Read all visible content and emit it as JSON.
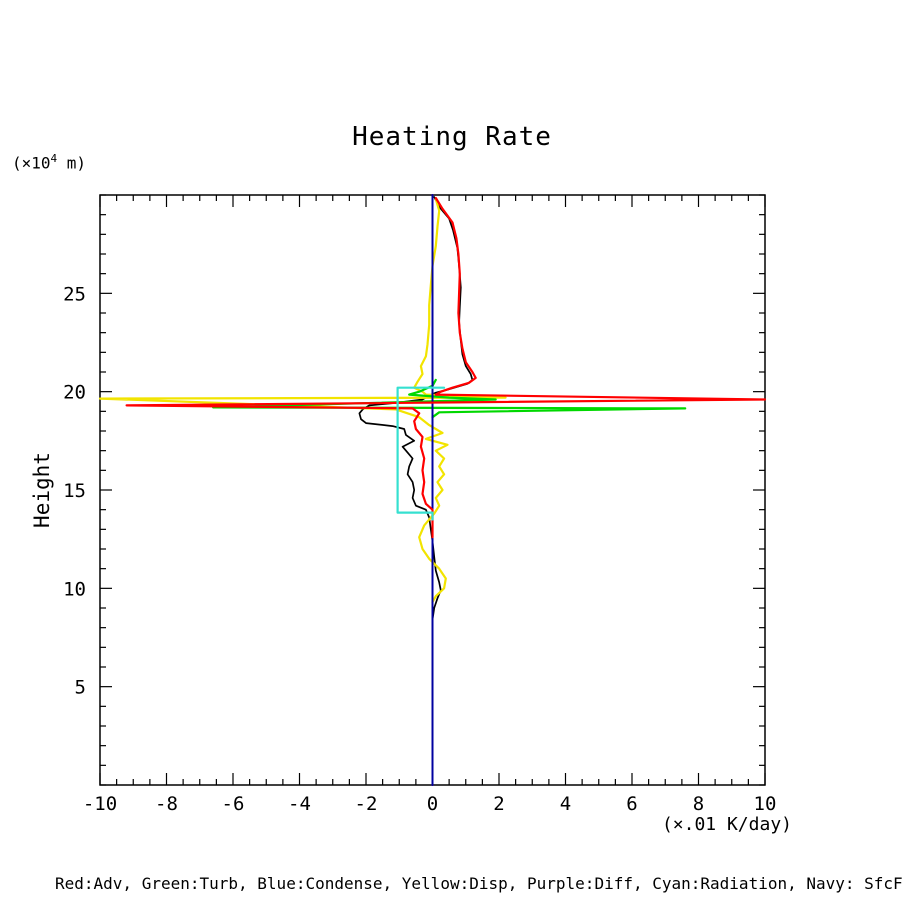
{
  "page": {
    "title": "Heating Rate",
    "y_axis_unit": {
      "prefix": "(×10",
      "sup": "4",
      "suffix": " m)"
    },
    "y_axis_label": "Height",
    "x_axis_unit": "(×.01 K/day)",
    "legend": "Red:Adv, Green:Turb, Blue:Condense, Yellow:Disp, Purple:Diff, Cyan:Radiation, Navy: SfcFluc"
  },
  "chart_data": {
    "type": "line",
    "title": "Heating Rate",
    "xlabel": "(×.01 K/day)",
    "ylabel": "Height (×10⁴ m)",
    "xlim": [
      -10,
      10
    ],
    "ylim": [
      0,
      30
    ],
    "x_ticks": [
      -10,
      -8,
      -6,
      -4,
      -2,
      0,
      2,
      4,
      6,
      8,
      10
    ],
    "y_ticks": [
      5,
      10,
      15,
      20,
      25
    ],
    "x_minor_step": 0.5,
    "y_minor_step": 1,
    "grid": false,
    "legend_position": "bottom",
    "series": [
      {
        "name": "diff-purple",
        "label": "Purple:Diff",
        "color": "#a000a0",
        "width": 2,
        "points": [
          [
            0,
            30
          ],
          [
            0,
            0
          ]
        ]
      },
      {
        "name": "total-black",
        "label": "Black",
        "color": "#000000",
        "width": 1.7,
        "points": [
          [
            0.05,
            29.9
          ],
          [
            0.2,
            29.4
          ],
          [
            0.5,
            28.8
          ],
          [
            0.62,
            28.2
          ],
          [
            0.75,
            27.3
          ],
          [
            0.8,
            26.4
          ],
          [
            0.85,
            25.3
          ],
          [
            0.82,
            24.3
          ],
          [
            0.8,
            23.5
          ],
          [
            0.85,
            22.6
          ],
          [
            0.9,
            21.9
          ],
          [
            1.0,
            21.3
          ],
          [
            1.15,
            20.9
          ],
          [
            1.2,
            20.6
          ],
          [
            1.05,
            20.4
          ],
          [
            0.45,
            20.1
          ],
          [
            0.1,
            19.95
          ],
          [
            -0.1,
            19.8
          ],
          [
            -0.3,
            19.6
          ],
          [
            -1.0,
            19.45
          ],
          [
            -1.9,
            19.3
          ],
          [
            -2.1,
            19.1
          ],
          [
            -2.2,
            18.9
          ],
          [
            -2.15,
            18.6
          ],
          [
            -2.0,
            18.4
          ],
          [
            -1.2,
            18.25
          ],
          [
            -0.85,
            18.1
          ],
          [
            -0.8,
            17.8
          ],
          [
            -0.55,
            17.5
          ],
          [
            -0.9,
            17.2
          ],
          [
            -0.75,
            16.9
          ],
          [
            -0.6,
            16.6
          ],
          [
            -0.7,
            16.2
          ],
          [
            -0.75,
            15.8
          ],
          [
            -0.6,
            15.4
          ],
          [
            -0.55,
            15.0
          ],
          [
            -0.6,
            14.6
          ],
          [
            -0.5,
            14.2
          ],
          [
            -0.2,
            14.0
          ],
          [
            -0.1,
            13.6
          ],
          [
            -0.05,
            13.0
          ],
          [
            0.0,
            12.4
          ],
          [
            0.05,
            11.6
          ],
          [
            0.1,
            10.9
          ],
          [
            0.2,
            10.3
          ],
          [
            0.25,
            9.9
          ],
          [
            0.15,
            9.5
          ],
          [
            0.05,
            9.0
          ],
          [
            0.0,
            8.4
          ],
          [
            0.0,
            8.0
          ]
        ]
      },
      {
        "name": "disp-yellow",
        "label": "Yellow:Disp",
        "color": "#f2e400",
        "width": 2.2,
        "points": [
          [
            0.1,
            29.8
          ],
          [
            0.2,
            29.2
          ],
          [
            0.15,
            28.4
          ],
          [
            0.1,
            27.4
          ],
          [
            0.0,
            26.4
          ],
          [
            -0.05,
            25.4
          ],
          [
            -0.1,
            24.4
          ],
          [
            -0.1,
            23.4
          ],
          [
            -0.15,
            22.4
          ],
          [
            -0.2,
            21.8
          ],
          [
            -0.35,
            21.3
          ],
          [
            -0.3,
            20.9
          ],
          [
            -0.45,
            20.5
          ],
          [
            -0.55,
            20.2
          ],
          [
            -0.3,
            20.0
          ],
          [
            -0.2,
            19.85
          ],
          [
            2.2,
            19.7
          ],
          [
            -10,
            19.65
          ],
          [
            -1.1,
            19.1
          ],
          [
            -0.4,
            18.7
          ],
          [
            -0.1,
            18.3
          ],
          [
            0.3,
            17.9
          ],
          [
            -0.2,
            17.6
          ],
          [
            0.45,
            17.3
          ],
          [
            0.1,
            17.0
          ],
          [
            0.35,
            16.6
          ],
          [
            0.2,
            16.2
          ],
          [
            0.35,
            15.8
          ],
          [
            0.15,
            15.4
          ],
          [
            0.3,
            15.0
          ],
          [
            0.1,
            14.6
          ],
          [
            0.2,
            14.2
          ],
          [
            0.05,
            13.8
          ],
          [
            -0.25,
            13.2
          ],
          [
            -0.4,
            12.6
          ],
          [
            -0.3,
            12.0
          ],
          [
            -0.1,
            11.5
          ],
          [
            0.2,
            11.0
          ],
          [
            0.4,
            10.5
          ],
          [
            0.35,
            10.0
          ],
          [
            0.1,
            9.6
          ],
          [
            0.0,
            9.3
          ]
        ]
      },
      {
        "name": "turb-green",
        "label": "Green:Turb",
        "color": "#00d800",
        "width": 2.2,
        "points": [
          [
            0.1,
            20.6
          ],
          [
            0.0,
            20.3
          ],
          [
            -0.4,
            20.0
          ],
          [
            -0.7,
            19.85
          ],
          [
            0.5,
            19.7
          ],
          [
            1.9,
            19.6
          ],
          [
            -6.6,
            19.2
          ],
          [
            7.6,
            19.15
          ],
          [
            0.2,
            18.95
          ],
          [
            0.0,
            18.7
          ]
        ]
      },
      {
        "name": "sfcfluc-navy",
        "label": "Navy: SfcFluc",
        "color": "#0000a0",
        "width": 2,
        "points": [
          [
            0,
            30
          ],
          [
            0,
            0
          ]
        ]
      },
      {
        "name": "adv-red",
        "label": "Red:Adv",
        "color": "#ff0000",
        "width": 2.2,
        "points": [
          [
            0.1,
            29.85
          ],
          [
            0.3,
            29.3
          ],
          [
            0.6,
            28.6
          ],
          [
            0.72,
            27.8
          ],
          [
            0.78,
            27.0
          ],
          [
            0.82,
            26.0
          ],
          [
            0.8,
            25.0
          ],
          [
            0.78,
            24.0
          ],
          [
            0.82,
            23.0
          ],
          [
            0.9,
            22.2
          ],
          [
            1.0,
            21.5
          ],
          [
            1.2,
            21.0
          ],
          [
            1.3,
            20.7
          ],
          [
            1.1,
            20.45
          ],
          [
            0.6,
            20.2
          ],
          [
            0.25,
            20.0
          ],
          [
            0.1,
            19.85
          ],
          [
            10,
            19.6
          ],
          [
            -9.2,
            19.3
          ],
          [
            -0.6,
            19.15
          ],
          [
            -0.4,
            18.9
          ],
          [
            -0.55,
            18.5
          ],
          [
            -0.5,
            18.1
          ],
          [
            -0.3,
            17.7
          ],
          [
            -0.35,
            17.2
          ],
          [
            -0.25,
            16.6
          ],
          [
            -0.3,
            16.0
          ],
          [
            -0.25,
            15.4
          ],
          [
            -0.3,
            14.8
          ],
          [
            -0.2,
            14.3
          ],
          [
            0.0,
            14.0
          ],
          [
            0.0,
            13.4
          ],
          [
            0.0,
            12.6
          ]
        ]
      },
      {
        "name": "radiation-cyan",
        "label": "Cyan:Radiation",
        "color": "#35e0d0",
        "width": 2.2,
        "points": [
          [
            0.35,
            20.2
          ],
          [
            -1.05,
            20.2
          ],
          [
            -1.05,
            13.85
          ],
          [
            0.0,
            13.85
          ],
          [
            0.0,
            13.5
          ]
        ]
      }
    ]
  }
}
